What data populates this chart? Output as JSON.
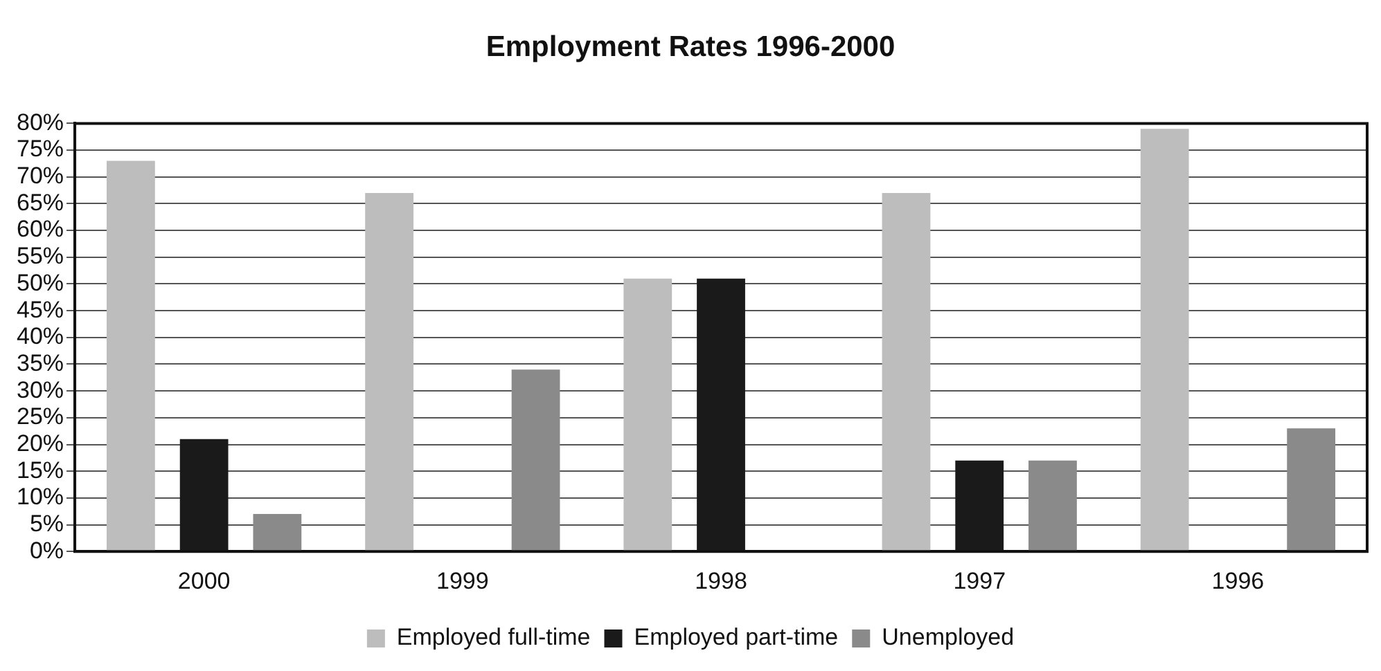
{
  "chart_data": {
    "type": "bar",
    "title": "Employment Rates 1996-2000",
    "categories": [
      "2000",
      "1999",
      "1998",
      "1997",
      "1996"
    ],
    "series": [
      {
        "name": "Employed full-time",
        "color": "#bdbdbd",
        "values": [
          73,
          67,
          51,
          67,
          79
        ]
      },
      {
        "name": "Employed part-time",
        "color": "#1a1a1a",
        "values": [
          21,
          0,
          51,
          17,
          0
        ]
      },
      {
        "name": "Unemployed",
        "color": "#8a8a8a",
        "values": [
          7,
          34,
          0,
          17,
          23
        ]
      }
    ],
    "ylim": [
      0,
      80
    ],
    "yticks": [
      {
        "value": 0,
        "label": "0%"
      },
      {
        "value": 5,
        "label": "5%"
      },
      {
        "value": 10,
        "label": "10%"
      },
      {
        "value": 15,
        "label": "15%"
      },
      {
        "value": 20,
        "label": "20%"
      },
      {
        "value": 25,
        "label": "25%"
      },
      {
        "value": 30,
        "label": "30%"
      },
      {
        "value": 35,
        "label": "35%"
      },
      {
        "value": 40,
        "label": "40%"
      },
      {
        "value": 45,
        "label": "45%"
      },
      {
        "value": 50,
        "label": "50%"
      },
      {
        "value": 55,
        "label": "55%"
      },
      {
        "value": 60,
        "label": "60%"
      },
      {
        "value": 65,
        "label": "65%"
      },
      {
        "value": 70,
        "label": "70%"
      },
      {
        "value": 75,
        "label": "75%"
      },
      {
        "value": 80,
        "label": "80%"
      }
    ],
    "grid": "y",
    "legend": "bottom"
  }
}
